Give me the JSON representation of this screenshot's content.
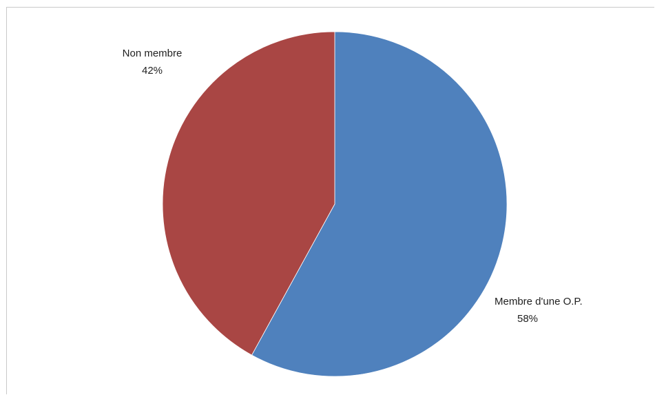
{
  "chart_data": {
    "type": "pie",
    "title": "",
    "categories": [
      "Membre d'une O.P.",
      "Non membre"
    ],
    "values": [
      58,
      42
    ],
    "labels": [
      {
        "name": "Membre d'une O.P.",
        "percent_label": "58%"
      },
      {
        "name": "Non membre",
        "percent_label": "42%"
      }
    ],
    "colors": [
      "#4f81bd",
      "#a94644"
    ],
    "start": "12 o'clock",
    "direction": "clockwise",
    "legend": "none",
    "grid": false
  }
}
